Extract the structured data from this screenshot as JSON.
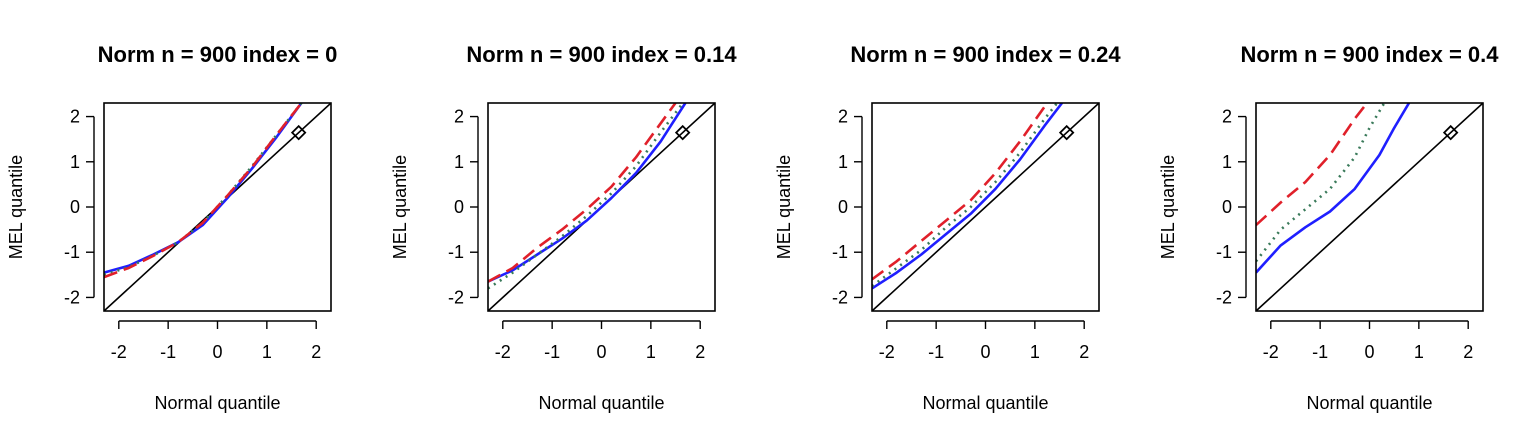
{
  "chart_data": [
    {
      "type": "line",
      "title": "Norm n = 900 index = 0",
      "xlabel": "Normal quantile",
      "ylabel": "MEL quantile",
      "xlim": [
        -2.3,
        2.3
      ],
      "ylim": [
        -2.3,
        2.3
      ],
      "x_ticks": [
        "-2",
        "-1",
        "0",
        "1",
        "2"
      ],
      "y_ticks": [
        "-2",
        "-1",
        "0",
        "1",
        "2"
      ],
      "reference_line": "y = x",
      "marker": {
        "shape": "diamond",
        "x": 1.645,
        "y": 1.645
      },
      "series": [
        {
          "color": "#1f1fff",
          "dash": "solid",
          "x": [
            -2.3,
            -1.8,
            -1.3,
            -0.8,
            -0.3,
            0.2,
            0.7,
            1.2,
            1.7
          ],
          "y": [
            -1.45,
            -1.3,
            -1.05,
            -0.78,
            -0.4,
            0.2,
            0.85,
            1.55,
            2.3
          ]
        },
        {
          "color": "#3a7a5a",
          "dash": "dotted",
          "x": [
            -2.3,
            -1.8,
            -1.3,
            -0.8,
            -0.3,
            0.2,
            0.7,
            1.2,
            1.7
          ],
          "y": [
            -1.5,
            -1.33,
            -1.07,
            -0.78,
            -0.35,
            0.25,
            0.9,
            1.6,
            2.3
          ]
        },
        {
          "color": "#e0202a",
          "dash": "dashed",
          "x": [
            -2.3,
            -1.8,
            -1.3,
            -0.8,
            -0.3,
            0.2,
            0.7,
            1.2,
            1.7
          ],
          "y": [
            -1.55,
            -1.35,
            -1.08,
            -0.78,
            -0.35,
            0.25,
            0.88,
            1.6,
            2.3
          ]
        }
      ]
    },
    {
      "type": "line",
      "title": "Norm n = 900 index = 0.14",
      "xlabel": "Normal quantile",
      "ylabel": "MEL quantile",
      "xlim": [
        -2.3,
        2.3
      ],
      "ylim": [
        -2.3,
        2.3
      ],
      "x_ticks": [
        "-2",
        "-1",
        "0",
        "1",
        "2"
      ],
      "y_ticks": [
        "-2",
        "-1",
        "0",
        "1",
        "2"
      ],
      "reference_line": "y = x",
      "marker": {
        "shape": "diamond",
        "x": 1.645,
        "y": 1.645
      },
      "series": [
        {
          "color": "#1f1fff",
          "dash": "solid",
          "x": [
            -2.3,
            -1.8,
            -1.3,
            -0.8,
            -0.3,
            0.2,
            0.7,
            1.2,
            1.7
          ],
          "y": [
            -1.65,
            -1.4,
            -1.05,
            -0.7,
            -0.3,
            0.2,
            0.75,
            1.45,
            2.3
          ]
        },
        {
          "color": "#3a7a5a",
          "dash": "dotted",
          "x": [
            -2.3,
            -1.8,
            -1.3,
            -0.8,
            -0.3,
            0.2,
            0.7,
            1.2,
            1.65
          ],
          "y": [
            -1.8,
            -1.45,
            -1.05,
            -0.65,
            -0.2,
            0.3,
            0.9,
            1.65,
            2.3
          ]
        },
        {
          "color": "#e0202a",
          "dash": "dashed",
          "x": [
            -2.3,
            -1.8,
            -1.3,
            -0.8,
            -0.3,
            0.2,
            0.7,
            1.2,
            1.5
          ],
          "y": [
            -1.65,
            -1.35,
            -0.9,
            -0.5,
            -0.05,
            0.45,
            1.1,
            1.85,
            2.3
          ]
        }
      ]
    },
    {
      "type": "line",
      "title": "Norm n = 900 index = 0.24",
      "xlabel": "Normal quantile",
      "ylabel": "MEL quantile",
      "xlim": [
        -2.3,
        2.3
      ],
      "ylim": [
        -2.3,
        2.3
      ],
      "x_ticks": [
        "-2",
        "-1",
        "0",
        "1",
        "2"
      ],
      "y_ticks": [
        "-2",
        "-1",
        "0",
        "1",
        "2"
      ],
      "reference_line": "y = x",
      "marker": {
        "shape": "diamond",
        "x": 1.645,
        "y": 1.645
      },
      "series": [
        {
          "color": "#1f1fff",
          "dash": "solid",
          "x": [
            -2.3,
            -1.8,
            -1.3,
            -0.8,
            -0.3,
            0.2,
            0.7,
            1.2,
            1.55
          ],
          "y": [
            -1.8,
            -1.45,
            -1.05,
            -0.6,
            -0.15,
            0.4,
            1.05,
            1.8,
            2.3
          ]
        },
        {
          "color": "#3a7a5a",
          "dash": "dotted",
          "x": [
            -2.3,
            -1.8,
            -1.3,
            -0.8,
            -0.3,
            0.2,
            0.7,
            1.2,
            1.45
          ],
          "y": [
            -1.75,
            -1.35,
            -0.95,
            -0.45,
            0.0,
            0.55,
            1.2,
            1.95,
            2.3
          ]
        },
        {
          "color": "#e0202a",
          "dash": "dashed",
          "x": [
            -2.3,
            -1.8,
            -1.3,
            -0.8,
            -0.3,
            0.2,
            0.7,
            1.25
          ],
          "y": [
            -1.6,
            -1.2,
            -0.75,
            -0.3,
            0.15,
            0.75,
            1.45,
            2.3
          ]
        }
      ]
    },
    {
      "type": "line",
      "title": "Norm n = 900 index = 0.4",
      "xlabel": "Normal quantile",
      "ylabel": "MEL quantile",
      "xlim": [
        -2.3,
        2.3
      ],
      "ylim": [
        -2.3,
        2.3
      ],
      "x_ticks": [
        "-2",
        "-1",
        "0",
        "1",
        "2"
      ],
      "y_ticks": [
        "-2",
        "-1",
        "0",
        "1",
        "2"
      ],
      "reference_line": "y = x",
      "marker": {
        "shape": "diamond",
        "x": 1.645,
        "y": 1.645
      },
      "series": [
        {
          "color": "#1f1fff",
          "dash": "solid",
          "x": [
            -2.3,
            -1.8,
            -1.3,
            -0.8,
            -0.3,
            0.2,
            0.5,
            0.8
          ],
          "y": [
            -1.45,
            -0.85,
            -0.45,
            -0.1,
            0.4,
            1.15,
            1.75,
            2.3
          ]
        },
        {
          "color": "#3a7a5a",
          "dash": "dotted",
          "x": [
            -2.3,
            -1.8,
            -1.3,
            -0.8,
            -0.3,
            0.0,
            0.3
          ],
          "y": [
            -1.2,
            -0.5,
            -0.05,
            0.4,
            1.1,
            1.75,
            2.3
          ]
        },
        {
          "color": "#e0202a",
          "dash": "dashed",
          "x": [
            -2.3,
            -1.8,
            -1.3,
            -0.8,
            -0.3,
            -0.05
          ],
          "y": [
            -0.4,
            0.1,
            0.55,
            1.15,
            1.95,
            2.3
          ]
        }
      ]
    }
  ]
}
